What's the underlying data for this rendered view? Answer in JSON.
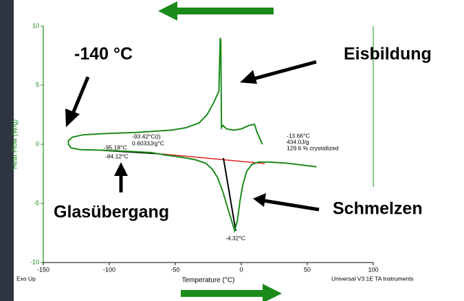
{
  "chart_data": {
    "type": "line",
    "x_label": "Temperature (°C)",
    "y_label": "Heat Flow (W/g)",
    "xlim": [
      -150,
      100
    ],
    "ylim": [
      -10,
      10
    ],
    "xticks": [
      -150,
      -100,
      -50,
      0,
      50,
      100
    ],
    "yticks": [
      -10,
      -5,
      0,
      5,
      10
    ],
    "series": [
      {
        "color": "#1a8a1a",
        "x": [
          16,
          12,
          10,
          6,
          0,
          -6,
          -11,
          -14,
          -15,
          -15.5,
          -16,
          -17,
          -21,
          -26,
          -32,
          -42,
          -53,
          -80,
          -105,
          -120,
          -128,
          -131,
          -131,
          -129,
          -122,
          -105,
          -85,
          -68,
          -58,
          -45,
          -35,
          -27,
          -22,
          -18,
          -14,
          -10,
          -7,
          -5,
          -3,
          -1,
          1,
          4,
          8,
          13,
          20,
          35,
          57
        ],
        "values": [
          0,
          1,
          1.7,
          1.6,
          1.3,
          1.2,
          1.3,
          1.6,
          1.4,
          8.8,
          9,
          4.5,
          3.5,
          2.5,
          1.8,
          1.4,
          1.2,
          1.0,
          0.9,
          0.8,
          0.6,
          0.3,
          0,
          -0.3,
          -0.45,
          -0.5,
          -0.6,
          -0.7,
          -0.9,
          -1.1,
          -1.3,
          -1.6,
          -2.1,
          -2.8,
          -4,
          -5.5,
          -6.6,
          -7.3,
          -6.5,
          -4.8,
          -3.5,
          -2.3,
          -1.7,
          -1.5,
          -1.5,
          -1.6,
          -1.9
        ]
      }
    ],
    "annotations": {
      "low_temp": "-140 °C",
      "ice": "Eisbildung",
      "glass": "Glasübergang",
      "melt": "Schmelzen",
      "glass_onset": "-93.42°C(I)",
      "glass_cp": "0.6033J/g°C",
      "glass_start": "-95.18°C",
      "glass_end": "-84.12°C",
      "melt_onset": "-13.66°C",
      "melt_enthalpy": "434.0J/g",
      "melt_cryst": "129.6 % crystallized",
      "melt_peak": "-4.32°C",
      "exo": "Exo Up",
      "instrument": "Universal V3.1E TA Instruments"
    }
  }
}
